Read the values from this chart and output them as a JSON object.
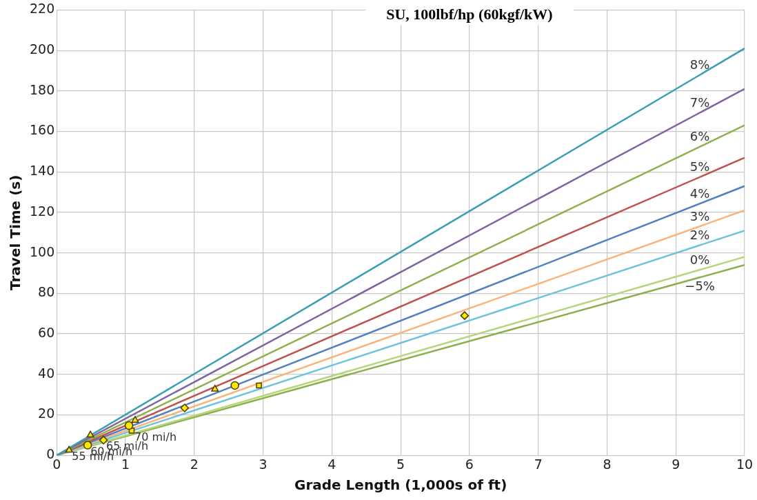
{
  "chart_data": {
    "type": "line",
    "title": "SU, 100lbf/hp (60kgf/kW)",
    "xlabel": "Grade Length (1,000s of ft)",
    "ylabel": "Travel Time (s)",
    "xlim": [
      0,
      10
    ],
    "xticks": [
      0,
      1,
      2,
      3,
      4,
      5,
      6,
      7,
      8,
      9,
      10
    ],
    "ylim": [
      0,
      220
    ],
    "yticks": [
      0,
      20,
      40,
      60,
      80,
      100,
      120,
      140,
      160,
      180,
      200,
      220
    ],
    "grid": true,
    "legend": false,
    "marker": "none",
    "line_style": "solid",
    "x": [
      0,
      10
    ],
    "series": [
      {
        "name": "8%",
        "color": "#3a9fb5",
        "values": [
          0,
          201
        ]
      },
      {
        "name": "7%",
        "color": "#8064a2",
        "values": [
          0,
          181
        ]
      },
      {
        "name": "6%",
        "color": "#8fb04a",
        "values": [
          0,
          163
        ]
      },
      {
        "name": "5%",
        "color": "#c0504d",
        "values": [
          0,
          147
        ]
      },
      {
        "name": "4%",
        "color": "#4f81bd",
        "values": [
          0,
          133
        ]
      },
      {
        "name": "3%",
        "color": "#f9b47c",
        "values": [
          0,
          121
        ]
      },
      {
        "name": "2%",
        "color": "#6cc4dc",
        "values": [
          0,
          111
        ]
      },
      {
        "name": "0%",
        "color": "#b5d67a",
        "values": [
          0,
          98
        ]
      },
      {
        "name": "−5%",
        "color": "#8ab04a",
        "values": [
          0,
          94
        ]
      },
      {
        "type": "scatter",
        "marker": "triangle",
        "color": "#ffe600",
        "x": [
          0.18,
          0.49,
          1.14,
          2.3
        ],
        "values": [
          2.5,
          10,
          17.3,
          32.7
        ]
      },
      {
        "type": "scatter",
        "marker": "circle",
        "color": "#ffe600",
        "x": [
          0.45,
          1.05,
          2.59
        ],
        "values": [
          5,
          14.7,
          34.5
        ]
      },
      {
        "type": "scatter",
        "marker": "diamond",
        "color": "#ffe600",
        "x": [
          0.68,
          1.86,
          5.93
        ],
        "values": [
          7.5,
          23.4,
          69
        ]
      },
      {
        "type": "scatter",
        "marker": "square",
        "color": "#ffe600",
        "x": [
          1.09,
          2.94
        ],
        "values": [
          12.2,
          34.5
        ]
      }
    ],
    "annotations": [
      {
        "text": "55 mi/h",
        "x": 0.18,
        "y": 2.5
      },
      {
        "text": "60 mi/h",
        "x": 0.45,
        "y": 5
      },
      {
        "text": "65 mi/h",
        "x": 0.68,
        "y": 7.5
      },
      {
        "text": "70 mi/h",
        "x": 1.09,
        "y": 12.2
      }
    ]
  }
}
